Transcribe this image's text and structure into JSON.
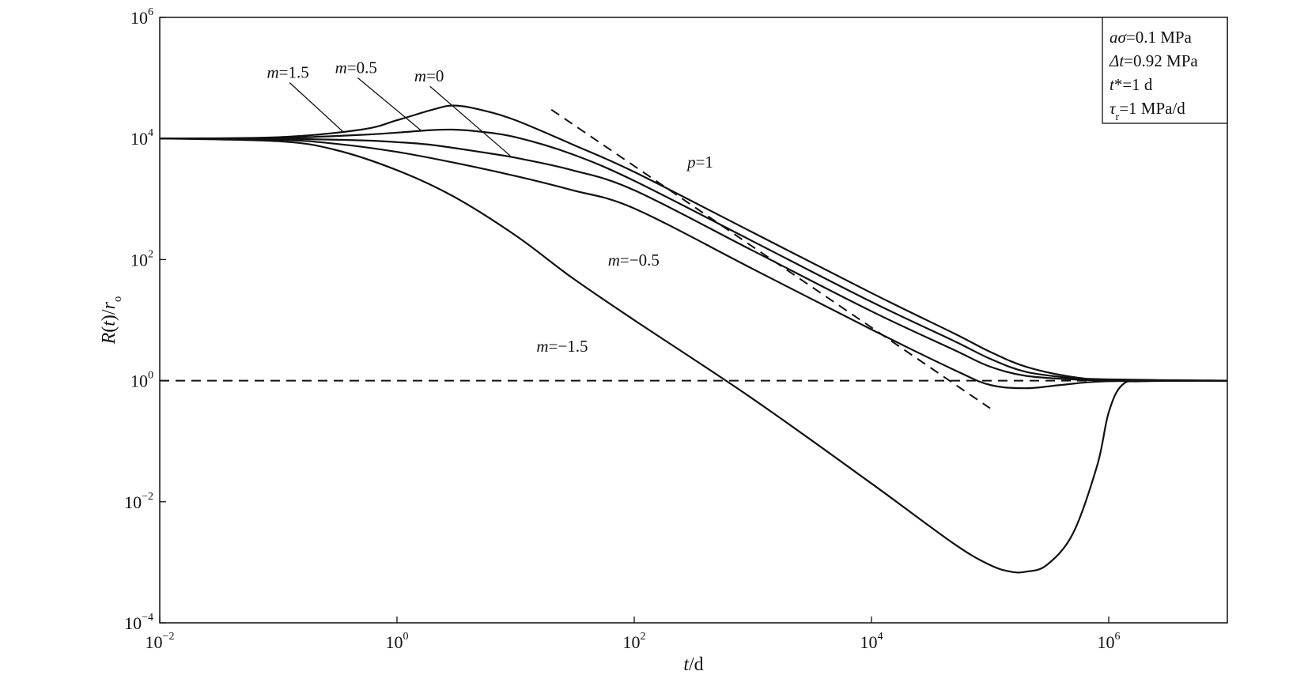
{
  "chart_data": {
    "type": "line",
    "x_scale": "log",
    "y_scale": "log",
    "xlim": [
      0.01,
      10000000
    ],
    "ylim": [
      0.0001,
      1000000
    ],
    "xlabel": {
      "base": "t",
      "unit": "/d"
    },
    "ylabel": {
      "pre": "R",
      "mid": "(",
      "var": "t",
      "post": ")/",
      "sym": "r",
      "sub": "o"
    },
    "x_ticks": [
      {
        "value": 0.01,
        "base": "10",
        "exp": "−2"
      },
      {
        "value": 1,
        "base": "10",
        "exp": "0"
      },
      {
        "value": 100,
        "base": "10",
        "exp": "2"
      },
      {
        "value": 10000,
        "base": "10",
        "exp": "4"
      },
      {
        "value": 1000000,
        "base": "10",
        "exp": "6"
      }
    ],
    "y_ticks": [
      {
        "value": 0.0001,
        "base": "10",
        "exp": "−4"
      },
      {
        "value": 0.01,
        "base": "10",
        "exp": "−2"
      },
      {
        "value": 1,
        "base": "10",
        "exp": "0"
      },
      {
        "value": 100,
        "base": "10",
        "exp": "2"
      },
      {
        "value": 10000,
        "base": "10",
        "exp": "4"
      },
      {
        "value": 1000000,
        "base": "10",
        "exp": "6"
      }
    ],
    "grid": false,
    "series": [
      {
        "name": "m=1.5",
        "x": [
          0.01,
          0.1,
          0.5,
          1,
          2,
          3,
          5,
          10,
          30,
          100,
          1000,
          10000,
          50000,
          100000,
          200000,
          500000,
          1000000,
          10000000
        ],
        "y": [
          10000,
          10500,
          14000,
          20000,
          30000,
          35000,
          30000,
          20000,
          8000,
          2800,
          280,
          28,
          6,
          3,
          1.7,
          1.15,
          1.05,
          1
        ]
      },
      {
        "name": "m=0.5",
        "x": [
          0.01,
          0.1,
          0.5,
          1,
          2,
          3,
          5,
          10,
          30,
          100,
          1000,
          10000,
          50000,
          100000,
          200000,
          500000,
          1000000,
          10000000
        ],
        "y": [
          10000,
          10200,
          11500,
          12500,
          13800,
          14000,
          13000,
          10500,
          5500,
          2000,
          200,
          20,
          4.5,
          2.3,
          1.4,
          1.1,
          1.02,
          1
        ]
      },
      {
        "name": "m=0",
        "x": [
          0.01,
          0.1,
          0.5,
          1,
          2,
          5,
          10,
          30,
          100,
          1000,
          10000,
          50000,
          100000,
          200000,
          500000,
          1000000,
          10000000
        ],
        "y": [
          10000,
          9900,
          9300,
          8700,
          7800,
          6000,
          4800,
          3000,
          1400,
          140,
          14,
          3.2,
          1.7,
          1.2,
          1.05,
          1.01,
          1
        ]
      },
      {
        "name": "m=−0.5",
        "x": [
          0.01,
          0.1,
          0.3,
          1,
          3,
          10,
          30,
          100,
          1000,
          10000,
          50000,
          100000,
          200000,
          400000,
          1000000,
          10000000
        ],
        "y": [
          10000,
          9500,
          8200,
          6000,
          4000,
          2400,
          1400,
          700,
          70,
          7,
          1.5,
          0.85,
          0.75,
          0.85,
          0.98,
          1
        ]
      },
      {
        "name": "m=−1.5",
        "x": [
          0.01,
          0.1,
          0.3,
          1,
          3,
          10,
          30,
          100,
          1000,
          10000,
          50000,
          100000,
          150000,
          200000,
          300000,
          500000,
          800000,
          1000000,
          1300000,
          2000000,
          10000000
        ],
        "y": [
          10000,
          9000,
          6500,
          3000,
          1100,
          250,
          50,
          10,
          0.5,
          0.02,
          0.002,
          0.0009,
          0.0007,
          0.0007,
          0.0009,
          0.003,
          0.04,
          0.3,
          0.85,
          0.98,
          1
        ]
      }
    ],
    "reference_lines": [
      {
        "name": "p=1",
        "x": [
          20,
          100000
        ],
        "y": [
          30000,
          0.35
        ],
        "style": "dashed"
      },
      {
        "name": "unity",
        "x": [
          0.01,
          10000000
        ],
        "y": [
          1,
          1
        ],
        "style": "dashed"
      }
    ],
    "annotations": [
      {
        "id": "m15",
        "text_pre": "m",
        "text_post": "=1.5",
        "x": 0.08,
        "y": 100000,
        "pointer": [
          0.35,
          13000
        ]
      },
      {
        "id": "m05",
        "text_pre": "m",
        "text_post": "=0.5",
        "x": 0.3,
        "y": 120000,
        "pointer": [
          1.6,
          13500
        ]
      },
      {
        "id": "m0",
        "text_pre": "m",
        "text_post": "=0",
        "x": 1.4,
        "y": 87000,
        "pointer": [
          9,
          5200
        ]
      },
      {
        "id": "mneg05",
        "text_pre": "m",
        "text_post": "=−0.5",
        "x": 60,
        "y": 80,
        "pointer": null
      },
      {
        "id": "mneg15",
        "text_pre": "m",
        "text_post": "=−1.5",
        "x": 15,
        "y": 3,
        "pointer": null
      },
      {
        "id": "p1",
        "text_pre": "p",
        "text_post": "=1",
        "x": 280,
        "y": 3300,
        "pointer": null
      }
    ],
    "legend": {
      "placement": "top-right",
      "entries": [
        {
          "pre": "aσ",
          "post": "=0.1 MPa"
        },
        {
          "pre": "Δt",
          "post": "=0.92 MPa"
        },
        {
          "pre": "t",
          "post": "*=1 d"
        },
        {
          "pre": "τ",
          "sub": "r",
          "post": "=1 MPa/d"
        }
      ]
    }
  }
}
